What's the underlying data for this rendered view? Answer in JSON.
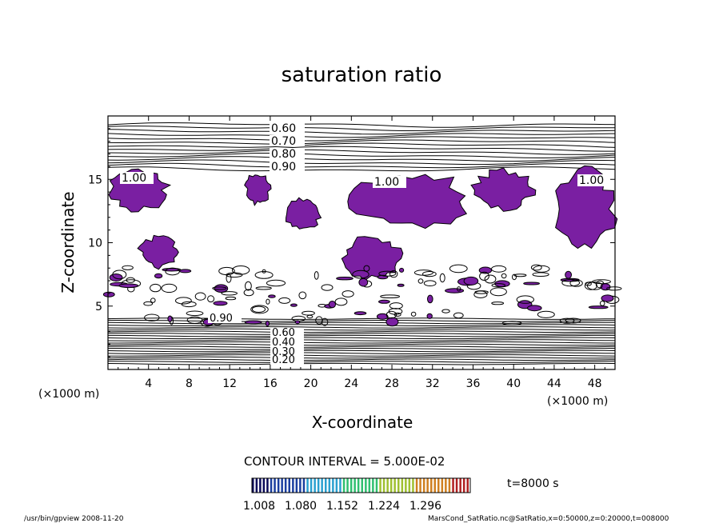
{
  "chart_data": {
    "type": "contour",
    "title": "saturation ratio",
    "xlabel": "X-coordinate",
    "ylabel": "Z-coordinate",
    "x_unit": "(×1000 m)",
    "x_unit_right": "(×1000 m)",
    "xlim": [
      0,
      50
    ],
    "ylim": [
      0,
      20
    ],
    "x_ticks": [
      4,
      8,
      12,
      16,
      20,
      24,
      28,
      32,
      36,
      40,
      44,
      48
    ],
    "y_ticks": [
      5,
      10,
      15
    ],
    "upper_contour_labels": [
      "0.60",
      "0.70",
      "0.80",
      "0.90",
      "1.00"
    ],
    "lower_contour_labels": [
      "0.90",
      "0.60",
      "0.40",
      "0.30",
      "0.20"
    ],
    "saturation_level": "1.00",
    "contour_interval_text": "CONTOUR INTERVAL = 5.000E-02",
    "colorbar_ticks": [
      "1.008",
      "1.080",
      "1.152",
      "1.224",
      "1.296"
    ],
    "colorbar_range": [
      1.008,
      1.296
    ],
    "time_label": "t=8000 s",
    "fill_color": "#7a1fa2",
    "supersaturated_regions_km": [
      {
        "x": [
          0,
          6
        ],
        "z": [
          12.5,
          15.8
        ]
      },
      {
        "x": [
          13.5,
          16
        ],
        "z": [
          13,
          15.5
        ]
      },
      {
        "x": [
          17.5,
          21
        ],
        "z": [
          11,
          13.5
        ]
      },
      {
        "x": [
          24,
          36
        ],
        "z": [
          11,
          15.5
        ]
      },
      {
        "x": [
          36,
          42
        ],
        "z": [
          12.5,
          15.8
        ]
      },
      {
        "x": [
          44,
          50
        ],
        "z": [
          9.5,
          15.8
        ]
      },
      {
        "x": [
          23,
          29
        ],
        "z": [
          7,
          10.5
        ]
      },
      {
        "x": [
          3,
          7
        ],
        "z": [
          8,
          10.5
        ]
      }
    ]
  },
  "footer": {
    "left": "/usr/bin/gpview   2008-11-20",
    "right": "MarsCond_SatRatio.nc@SatRatio,x=0:50000,z=0:20000,t=008000"
  }
}
